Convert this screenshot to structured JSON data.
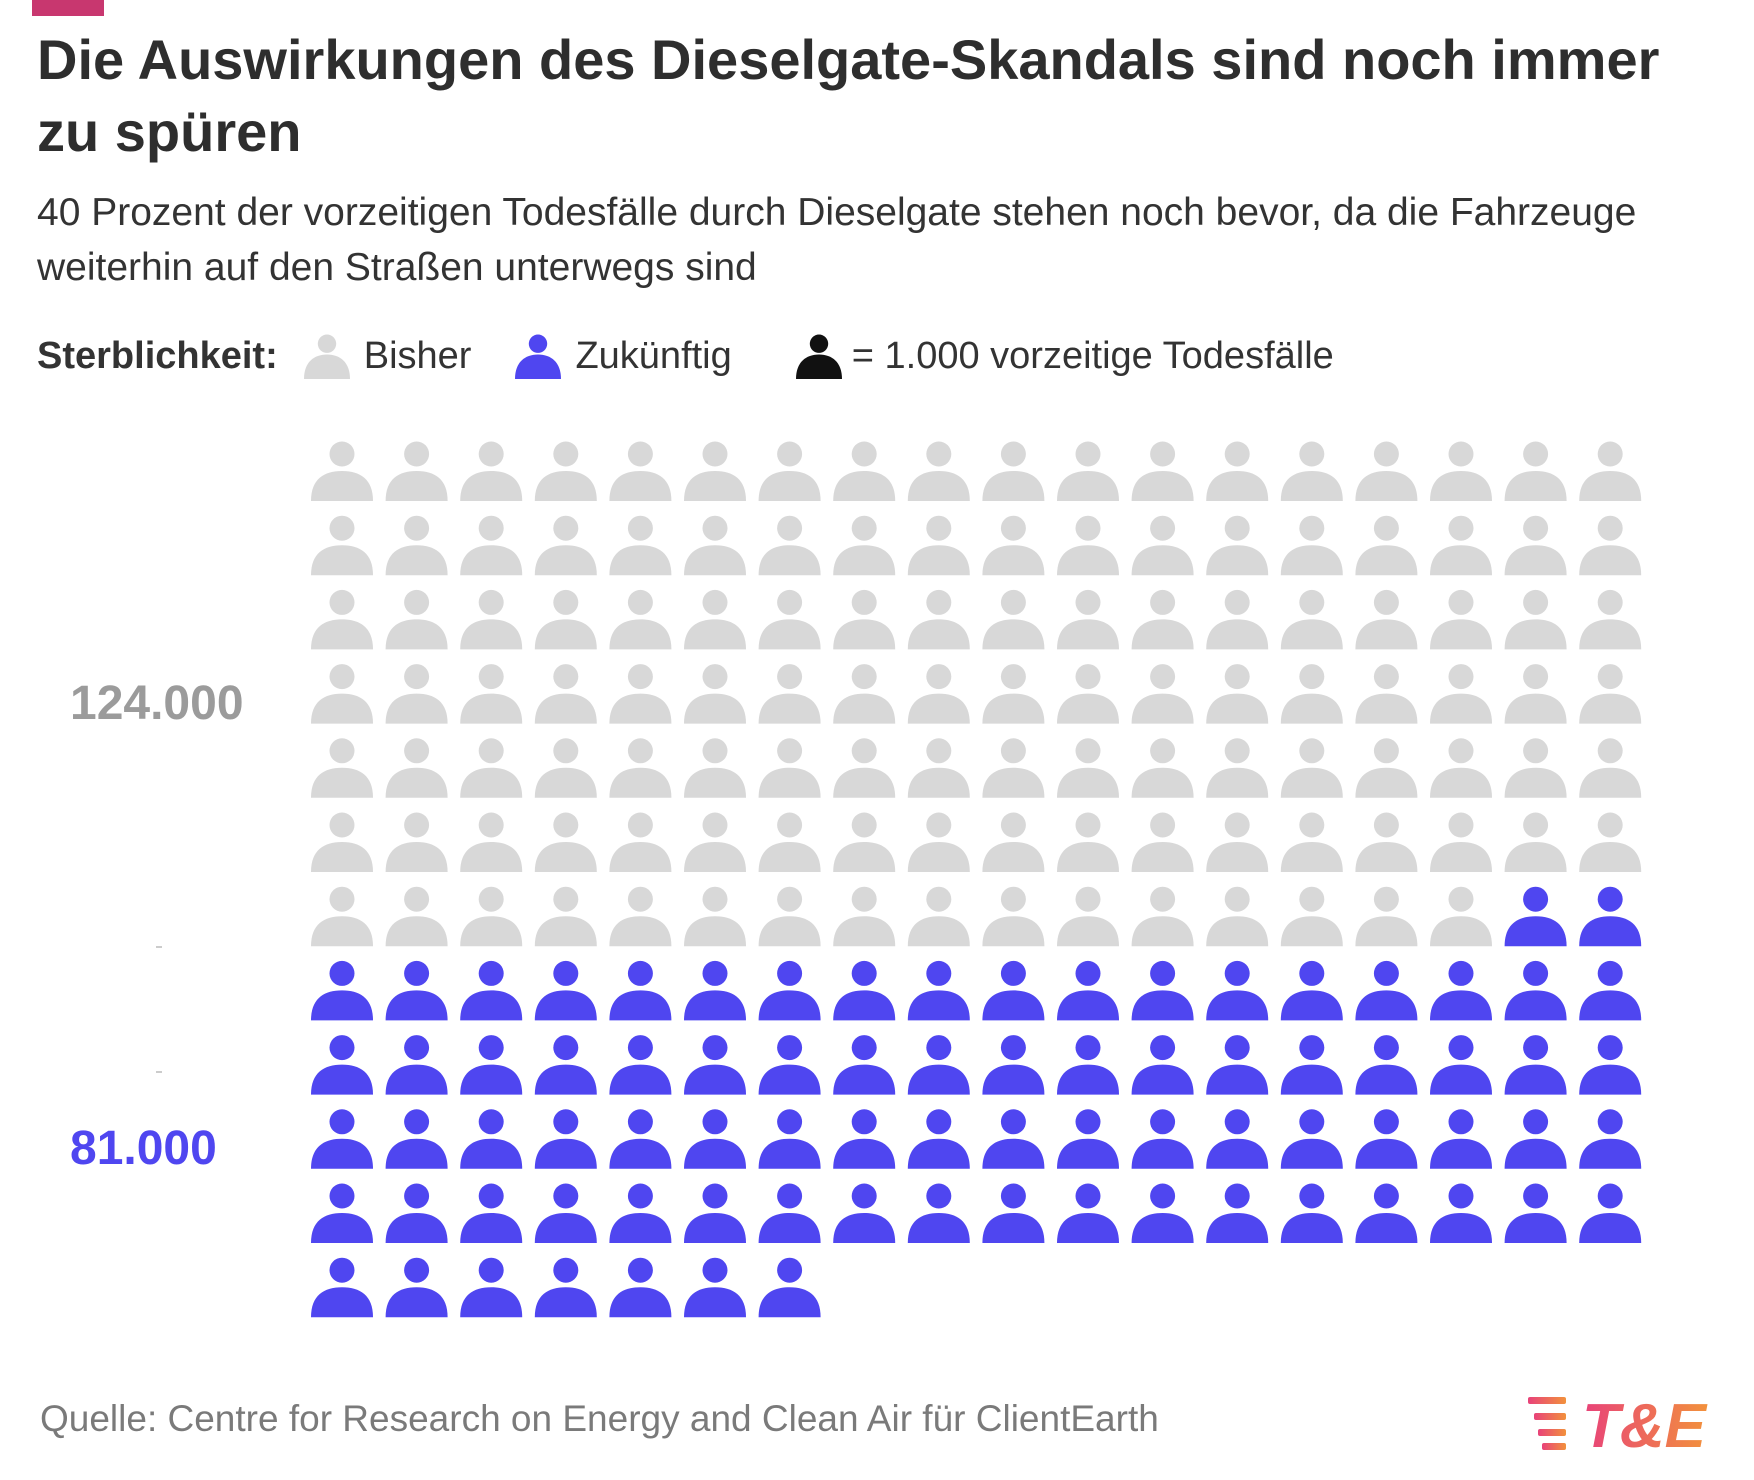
{
  "title": "Die Auswirkungen des Dieselgate-Skandals sind noch immer zu spüren",
  "subtitle": "40 Prozent der vorzeitigen Todesfälle durch Dieselgate stehen noch bevor, da die Fahrzeuge weiterhin auf den Straßen unterwegs sind",
  "legend": {
    "title": "Sterblichkeit:",
    "past_label": "Bisher",
    "future_label": "Zukünftig",
    "unit_label": "= 1.000 vorzeitige Todesfälle"
  },
  "labels": {
    "past_value": "124.000",
    "future_value": "81.000"
  },
  "source": "Quelle: Centre for Research on Energy and Clean Air für ClientEarth",
  "logo_text": "T&E",
  "colors": {
    "past": "#d8d8d8",
    "future": "#4f46f0",
    "unit": "#111111",
    "accent": "#c8376f",
    "logo_gradient_start": "#e8427a",
    "logo_gradient_end": "#f2913c"
  },
  "chart_data": {
    "type": "waffle",
    "unit": 1000,
    "columns": 18,
    "series": [
      {
        "name": "Bisher",
        "value": 124000,
        "icons": 124
      },
      {
        "name": "Zukünftig",
        "value": 81000,
        "icons": 81
      }
    ]
  }
}
